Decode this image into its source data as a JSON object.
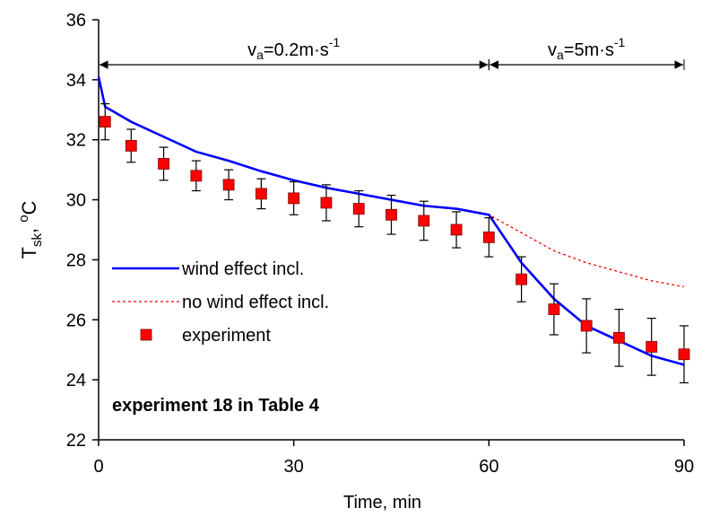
{
  "chart_data": {
    "type": "line",
    "x_label": "Time, min",
    "y_label": {
      "parts": [
        "T",
        "sk",
        ", ",
        "o",
        "C"
      ]
    },
    "xlim": [
      0,
      90
    ],
    "xticks": [
      0,
      30,
      60,
      90
    ],
    "ylim": [
      22,
      36
    ],
    "yticks": [
      22,
      24,
      26,
      28,
      30,
      32,
      34,
      36
    ],
    "x": [
      0,
      1,
      5,
      10,
      15,
      20,
      25,
      30,
      35,
      40,
      45,
      50,
      55,
      60,
      65,
      70,
      75,
      80,
      85,
      90
    ],
    "series": [
      {
        "name": "wind effect incl.",
        "color": "#0000ff",
        "style": "solid",
        "values": [
          34.1,
          33.1,
          32.6,
          32.1,
          31.6,
          31.3,
          30.95,
          30.65,
          30.4,
          30.2,
          30.0,
          29.8,
          29.7,
          29.5,
          27.9,
          26.7,
          25.8,
          25.3,
          24.8,
          24.5
        ]
      },
      {
        "name": "no wind effect incl.",
        "color": "#ff0000",
        "style": "dashed",
        "values": [
          34.1,
          33.1,
          32.6,
          32.1,
          31.6,
          31.3,
          30.95,
          30.65,
          30.4,
          30.2,
          30.0,
          29.8,
          29.7,
          29.5,
          28.9,
          28.3,
          27.9,
          27.6,
          27.3,
          27.1
        ]
      },
      {
        "name": "experiment",
        "color": "#ff0000",
        "style": "marker",
        "x": [
          1,
          5,
          10,
          15,
          20,
          25,
          30,
          35,
          40,
          45,
          50,
          55,
          60,
          65,
          70,
          75,
          80,
          85,
          90
        ],
        "values": [
          32.6,
          31.8,
          31.2,
          30.8,
          30.5,
          30.2,
          30.05,
          29.9,
          29.7,
          29.5,
          29.3,
          29.0,
          28.75,
          27.35,
          26.35,
          25.8,
          25.4,
          25.1,
          24.85
        ],
        "errors": [
          0.6,
          0.55,
          0.55,
          0.5,
          0.5,
          0.5,
          0.55,
          0.6,
          0.6,
          0.65,
          0.65,
          0.6,
          0.65,
          0.75,
          0.85,
          0.9,
          0.95,
          0.95,
          0.95
        ]
      }
    ],
    "spans": [
      {
        "from": 0,
        "to": 60,
        "y": 34.5,
        "parts": [
          "v",
          "a",
          "=0.2m·s",
          "-1"
        ]
      },
      {
        "from": 60,
        "to": 90,
        "y": 34.5,
        "parts": [
          "v",
          "a",
          "=5m·s",
          "-1"
        ]
      }
    ],
    "note": "experiment 18 in Table 4"
  }
}
